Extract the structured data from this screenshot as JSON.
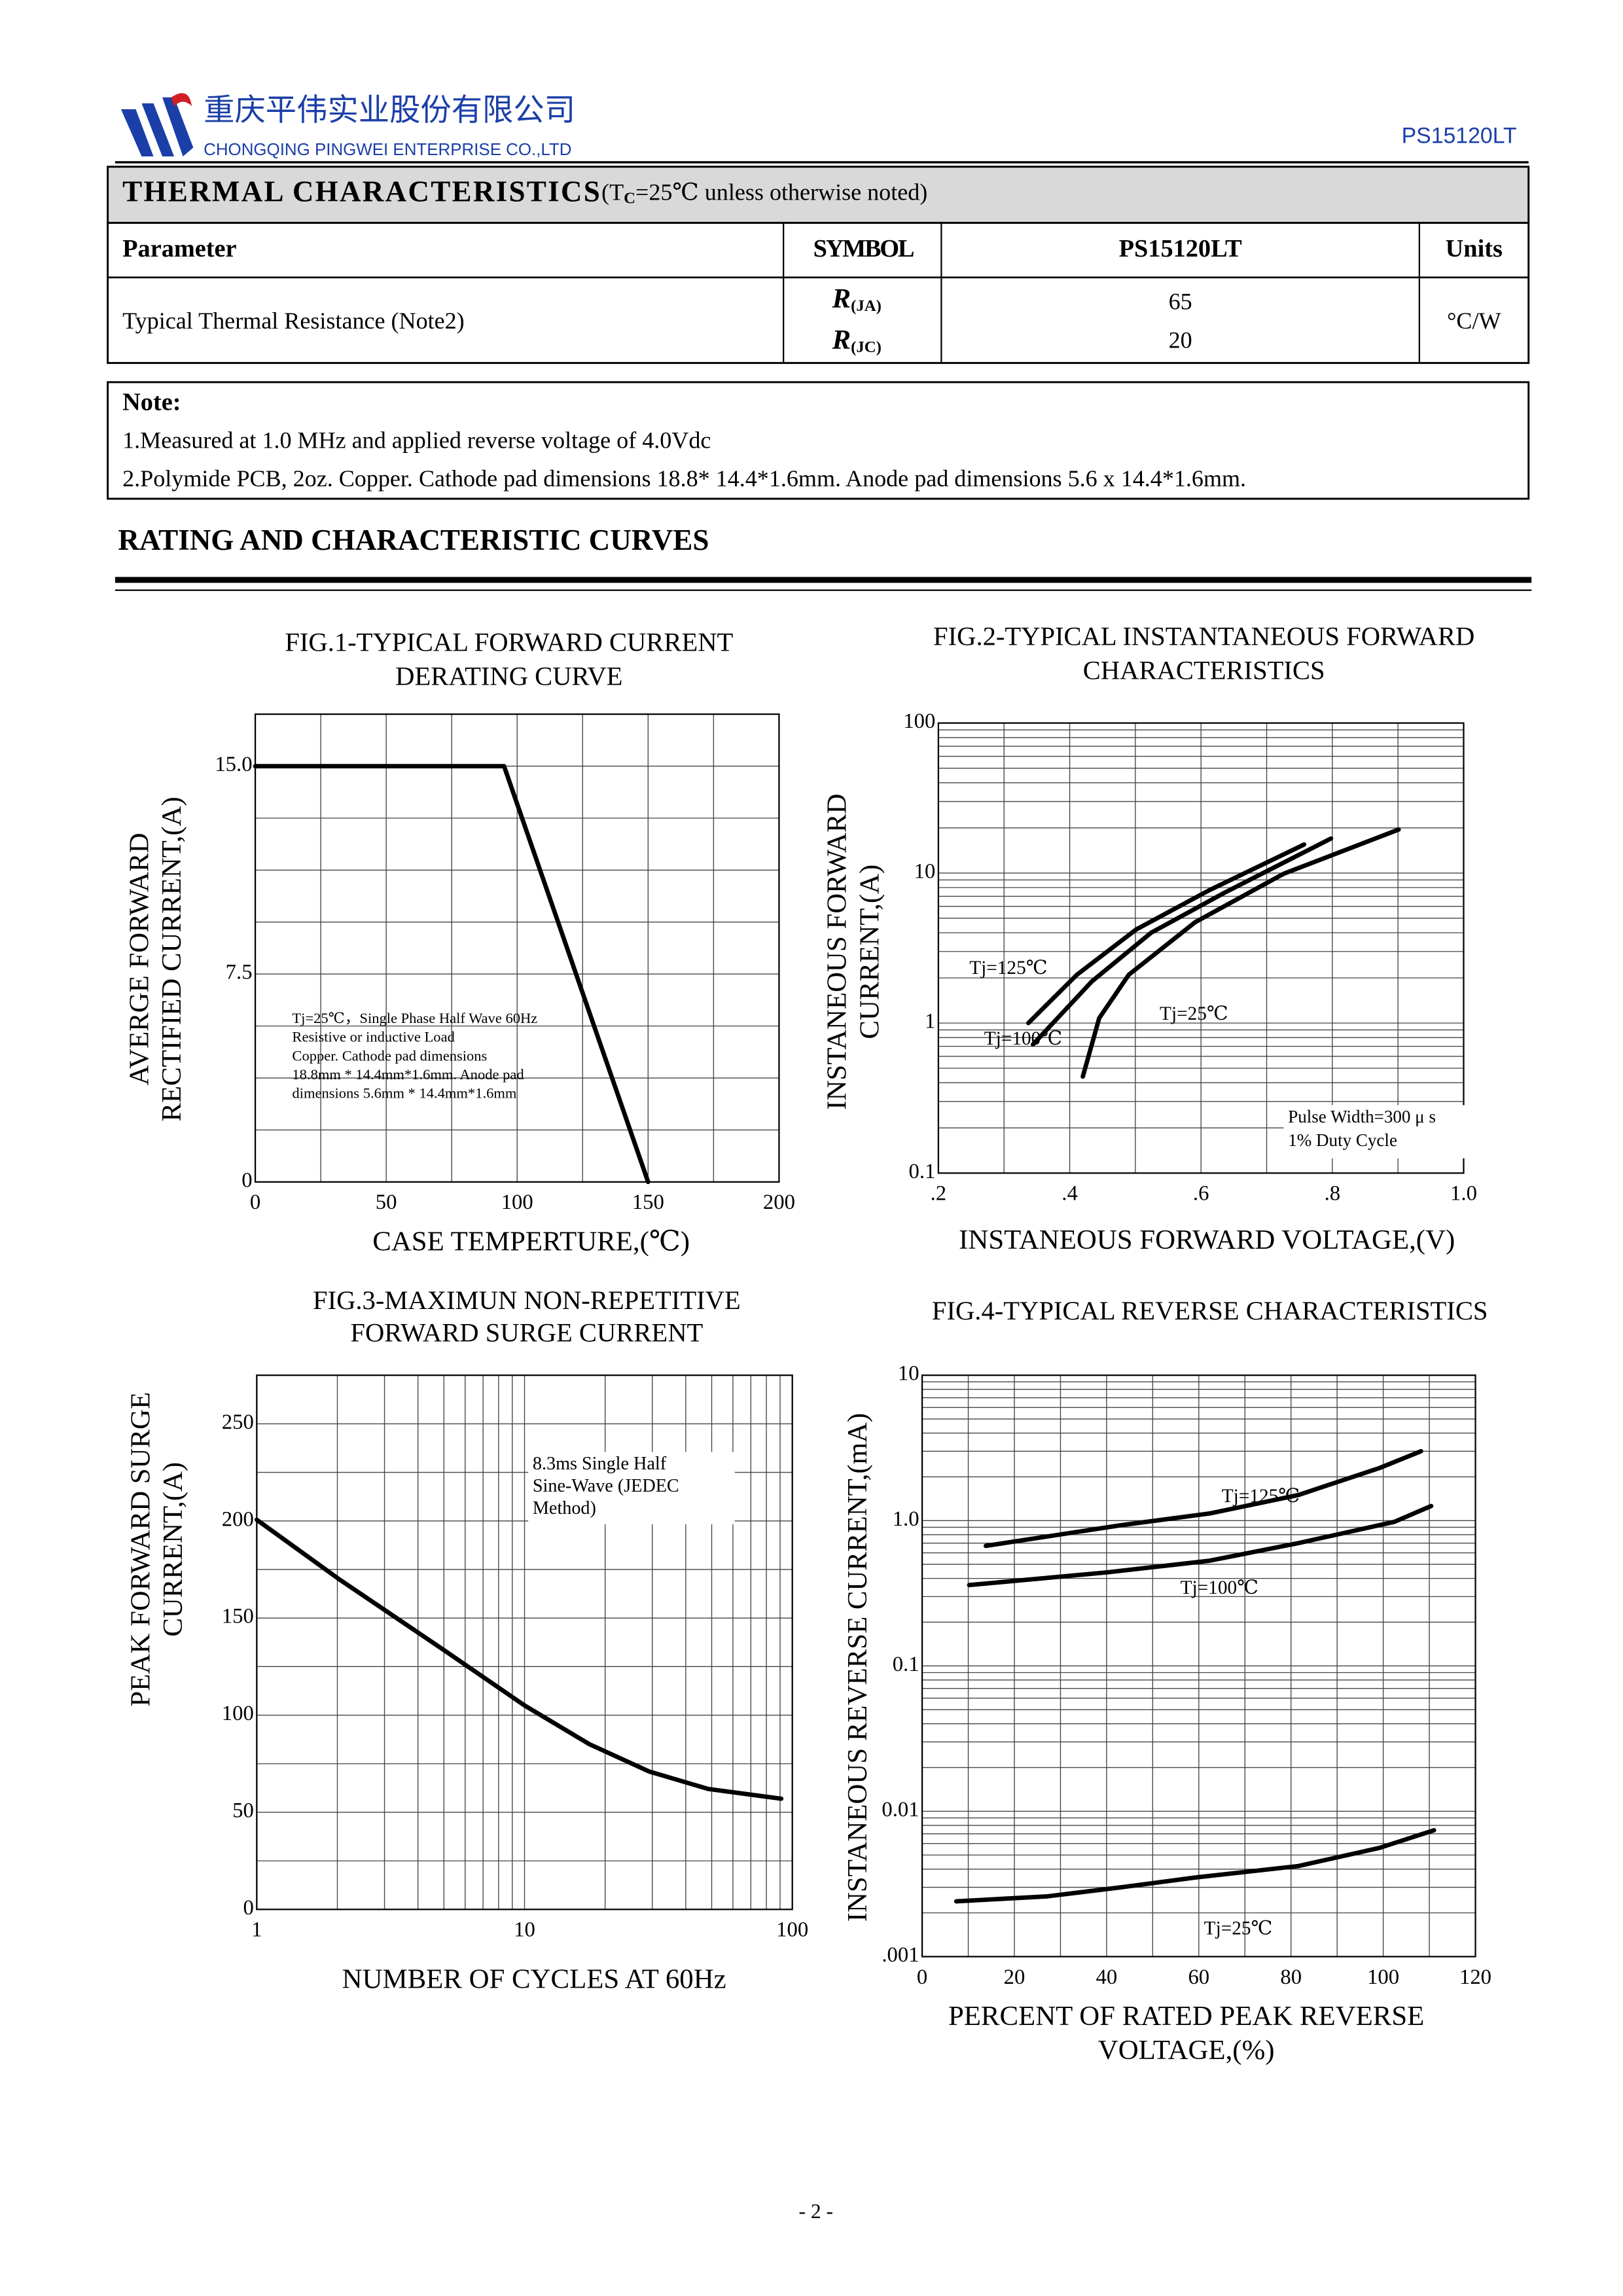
{
  "header": {
    "company_cn": "重庆平伟实业股份有限公司",
    "company_en": "CHONGQING PINGWEI ENTERPRISE CO.,LTD",
    "part_number": "PS15120LT"
  },
  "thermal_table": {
    "title": "THERMAL CHARACTERISTICS",
    "condition": [
      "(T",
      "C",
      "=25℃ unless otherwise noted)"
    ],
    "columns": [
      "Parameter",
      "SYMBOL",
      "PS15120LT",
      "Units"
    ],
    "rows": [
      {
        "parameter": "Typical Thermal Resistance (Note2)",
        "symbols": [
          [
            "R",
            "(JA)"
          ],
          [
            "R",
            "(JC)"
          ]
        ],
        "values": [
          65,
          20
        ],
        "units": "°C/W"
      }
    ]
  },
  "note": {
    "title": "Note:",
    "items": [
      "1.Measured at 1.0 MHz and applied reverse voltage of 4.0Vdc",
      "2.Polymide PCB, 2oz. Copper. Cathode pad dimensions 18.8* 14.4*1.6mm. Anode pad dimensions 5.6 x 14.4*1.6mm."
    ]
  },
  "section_title": "RATING AND CHARACTERISTIC CURVES",
  "chart_data": [
    {
      "type": "line",
      "title": [
        "FIG.1-TYPICAL FORWARD CURRENT",
        "DERATING CURVE"
      ],
      "ylabel": [
        "AVERGE FORWARD",
        "RECTIFIED CURRENT,(A)"
      ],
      "xlabel": [
        "CASE TEMPERTURE,(℃)"
      ],
      "xlim": [
        0,
        200
      ],
      "xticks": [
        0,
        50,
        100,
        150,
        200
      ],
      "ylim": [
        0,
        16.875
      ],
      "yticks": [
        0,
        7.5,
        {
          "value": 15,
          "label": "15.0"
        }
      ],
      "grid": true,
      "series": [
        {
          "color": "#000000",
          "x": [
            0,
            95,
            150
          ],
          "y": [
            15,
            15,
            0
          ]
        }
      ],
      "annotation": [
        "Tj=25℃，Single Phase Half Wave 60Hz",
        "Resistive or inductive Load",
        " Copper. Cathode pad dimensions",
        "18.8mm * 14.4mm*1.6mm. Anode pad",
        "dimensions 5.6mm * 14.4mm*1.6mm"
      ]
    },
    {
      "type": "line",
      "title": [
        "FIG.2-TYPICAL INSTANTANEOUS FORWARD",
        "CHARACTERISTICS"
      ],
      "ylabel": [
        "INSTANEOUS FORWARD",
        "CURRENT,(A)"
      ],
      "xlabel": [
        "INSTANEOUS FORWARD VOLTAGE,(V)"
      ],
      "xlim": [
        0.2,
        1.0
      ],
      "xticks": [
        {
          "value": 0.2,
          "label": ".2"
        },
        {
          "value": 0.4,
          "label": ".4"
        },
        {
          "value": 0.6,
          "label": ".6"
        },
        {
          "value": 0.8,
          "label": ".8"
        },
        {
          "value": 1.0,
          "label": "1.0"
        }
      ],
      "ylim": [
        0.1,
        100
      ],
      "yticks": [
        0.1,
        1,
        10,
        100
      ],
      "yscale": "log",
      "grid": true,
      "series": [
        {
          "name": "Tj=125℃",
          "color": "#000000",
          "x": [
            0.337,
            0.411,
            0.501,
            0.613,
            0.757
          ],
          "y": [
            1.0,
            2.1,
            4.2,
            7.7,
            15.5
          ]
        },
        {
          "name": "Tj=100℃",
          "color": "#000000",
          "x": [
            0.344,
            0.434,
            0.524,
            0.636,
            0.798
          ],
          "y": [
            0.72,
            1.9,
            4.0,
            7.4,
            17
          ]
        },
        {
          "name": "Tj=25℃",
          "color": "#000000",
          "x": [
            0.42,
            0.445,
            0.49,
            0.591,
            0.726,
            0.901
          ],
          "y": [
            0.44,
            1.08,
            2.1,
            4.7,
            9.9,
            19.5
          ]
        }
      ],
      "annotation": [
        "Pulse Width=300 μ s",
        "1% Duty Cycle"
      ]
    },
    {
      "type": "line",
      "title": [
        "FIG.3-MAXIMUN NON-REPETITIVE",
        "FORWARD SURGE CURRENT"
      ],
      "ylabel": [
        "PEAK FORWARD SURGE",
        "CURRENT,(A)"
      ],
      "xlabel": [
        "NUMBER OF CYCLES AT 60Hz"
      ],
      "xlim": [
        1,
        100
      ],
      "xticks": [
        1,
        10,
        100
      ],
      "xscale": "log",
      "ylim": [
        0,
        275
      ],
      "yticks": [
        0,
        50,
        100,
        150,
        200,
        250
      ],
      "grid": true,
      "series": [
        {
          "color": "#000000",
          "x": [
            1,
            2.03,
            4.94,
            10,
            17.5,
            29.2,
            48.6,
            90.9
          ],
          "y": [
            200.6,
            170,
            134,
            105,
            85,
            71,
            62,
            57
          ]
        }
      ],
      "annotation": [
        "8.3ms Single Half",
        "Sine-Wave (JEDEC",
        "Method)"
      ]
    },
    {
      "type": "line",
      "title": [
        "FIG.4-TYPICAL REVERSE CHARACTERISTICS"
      ],
      "ylabel": [
        "INSTANEOUS REVERSE CURRENT,(mA)"
      ],
      "xlabel": [
        "PERCENT OF RATED PEAK REVERSE",
        "VOLTAGE,(%)"
      ],
      "xlim": [
        0,
        120
      ],
      "xticks": [
        0,
        20,
        40,
        60,
        80,
        100,
        120
      ],
      "ylim": [
        0.001,
        10
      ],
      "yticks": [
        {
          "value": 0.001,
          "label": ".001"
        },
        0.01,
        0.1,
        {
          "value": 1,
          "label": "1.0"
        },
        10
      ],
      "yscale": "log",
      "grid": true,
      "series": [
        {
          "name": "Tj=125℃",
          "color": "#000000",
          "x": [
            13.8,
            43.2,
            62.4,
            81.6,
            99.2,
            108.2
          ],
          "y": [
            0.67,
            0.93,
            1.12,
            1.5,
            2.3,
            3.0
          ]
        },
        {
          "name": "Tj=100℃",
          "color": "#000000",
          "x": [
            10.2,
            40,
            62.4,
            81.6,
            102.4,
            110.4
          ],
          "y": [
            0.36,
            0.44,
            0.53,
            0.7,
            0.98,
            1.26
          ]
        },
        {
          "name": "Tj=25℃",
          "color": "#000000",
          "x": [
            7.4,
            27.2,
            43.2,
            59.2,
            81.6,
            99.2,
            111
          ],
          "y": [
            0.0024,
            0.0026,
            0.003,
            0.0035,
            0.0042,
            0.0056,
            0.0074
          ]
        }
      ]
    }
  ],
  "page_number": "- 2 -"
}
